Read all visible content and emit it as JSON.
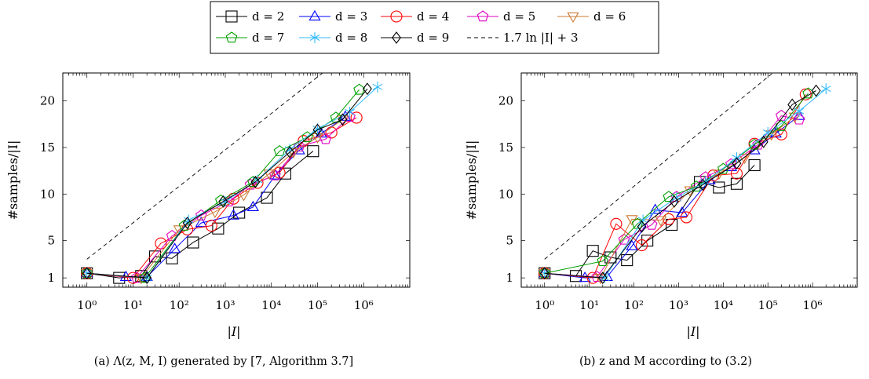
{
  "legend": {
    "entries": [
      {
        "key": "d2",
        "label": "d = 2",
        "marker": "square",
        "color": "#000000"
      },
      {
        "key": "d3",
        "label": "d = 3",
        "marker": "triangle",
        "color": "#0000ff"
      },
      {
        "key": "d4",
        "label": "d = 4",
        "marker": "circle",
        "color": "#ff0000"
      },
      {
        "key": "d5",
        "label": "d = 5",
        "marker": "pentagon",
        "color": "#e000c0"
      },
      {
        "key": "d6",
        "label": "d = 6",
        "marker": "triangle-down",
        "color": "#cc7a33"
      },
      {
        "key": "d7",
        "label": "d = 7",
        "marker": "pentagon",
        "color": "#00a000"
      },
      {
        "key": "d8",
        "label": "d = 8",
        "marker": "star",
        "color": "#33bbff"
      },
      {
        "key": "d9",
        "label": "d = 9",
        "marker": "diamond",
        "color": "#000000"
      },
      {
        "key": "ref",
        "label": "1.7 ln |I| + 3",
        "marker": "dashed-line",
        "color": "#000000"
      }
    ]
  },
  "chart_data": [
    {
      "type": "line",
      "caption": "(a) Λ(z, M, I) generated by [7, Algorithm 3.7]",
      "xlabel": "|I|",
      "ylabel": "#samples/|I|",
      "xscale": "log",
      "xlim": [
        0.3,
        10000000
      ],
      "ylim": [
        0,
        23
      ],
      "xticks": [
        1,
        10,
        100,
        1000,
        10000,
        100000,
        1000000
      ],
      "xtick_labels": [
        "10⁰",
        "10¹",
        "10²",
        "10³",
        "10⁴",
        "10⁵",
        "10⁶"
      ],
      "yticks": [
        1,
        5,
        10,
        15,
        20
      ],
      "reference": {
        "label": "1.7 ln |I| + 3",
        "a": 1.7,
        "b": 3
      },
      "series": [
        {
          "name": "d = 2",
          "x": [
            1,
            5,
            15,
            30,
            70,
            200,
            700,
            2000,
            8000,
            20000,
            80000
          ],
          "y": [
            1.5,
            1.0,
            1.2,
            3.3,
            3.1,
            4.8,
            6.3,
            8.0,
            9.6,
            12.2,
            14.6
          ]
        },
        {
          "name": "d = 3",
          "x": [
            1,
            7,
            20,
            80,
            300,
            1500,
            4000,
            12000,
            40000,
            120000,
            400000
          ],
          "y": [
            1.5,
            1.1,
            1.1,
            4.1,
            6.9,
            7.7,
            8.6,
            12.0,
            14.7,
            16.5,
            18.3
          ]
        },
        {
          "name": "d = 4",
          "x": [
            1,
            10,
            40,
            150,
            500,
            1500,
            5000,
            15000,
            50000,
            200000,
            700000
          ],
          "y": [
            1.5,
            1.0,
            4.7,
            6.2,
            6.6,
            9.5,
            11.2,
            12.3,
            15.7,
            16.6,
            18.2
          ]
        },
        {
          "name": "d = 5",
          "x": [
            1,
            12,
            70,
            300,
            1200,
            3500,
            12000,
            40000,
            150000,
            500000
          ],
          "y": [
            1.5,
            1.0,
            5.5,
            7.7,
            9.2,
            11.0,
            12.0,
            15.1,
            15.9,
            18.3
          ]
        },
        {
          "name": "d = 6",
          "x": [
            1,
            15,
            100,
            600,
            2500,
            9000,
            30000,
            100000,
            350000
          ],
          "y": [
            1.5,
            1.0,
            6.2,
            8.1,
            9.9,
            12.2,
            14.5,
            16.1,
            18.0
          ]
        },
        {
          "name": "d = 7",
          "x": [
            1,
            18,
            130,
            800,
            4000,
            15000,
            60000,
            250000,
            800000
          ],
          "y": [
            1.5,
            1.0,
            6.6,
            9.3,
            11.3,
            14.6,
            16.1,
            18.2,
            21.2
          ]
        },
        {
          "name": "d = 8",
          "x": [
            1,
            20,
            160,
            1000,
            5000,
            25000,
            100000,
            500000,
            2000000
          ],
          "y": [
            1.5,
            1.0,
            7.2,
            9.2,
            11.5,
            14.8,
            17.0,
            18.8,
            21.5
          ]
        },
        {
          "name": "d = 9",
          "x": [
            1,
            20,
            150,
            900,
            4500,
            25000,
            100000,
            350000,
            1200000
          ],
          "y": [
            1.5,
            1.0,
            6.9,
            9.2,
            11.3,
            14.5,
            16.9,
            18.0,
            21.3
          ]
        }
      ]
    },
    {
      "type": "line",
      "caption": "(b) z and M according to (3.2)",
      "xlabel": "|I|",
      "ylabel": "#samples/|I|",
      "xscale": "log",
      "xlim": [
        0.3,
        10000000
      ],
      "ylim": [
        0,
        23
      ],
      "xticks": [
        1,
        10,
        100,
        1000,
        10000,
        100000,
        1000000
      ],
      "xtick_labels": [
        "10⁰",
        "10¹",
        "10²",
        "10³",
        "10⁴",
        "10⁵",
        "10⁶"
      ],
      "yticks": [
        1,
        5,
        10,
        15,
        20
      ],
      "reference": {
        "label": "1.7 ln |I| + 3",
        "a": 1.7,
        "b": 3
      },
      "series": [
        {
          "name": "d = 2",
          "x": [
            1,
            5,
            12,
            30,
            70,
            200,
            700,
            3000,
            8000,
            20000,
            50000
          ],
          "y": [
            1.5,
            1.2,
            3.9,
            3.2,
            2.9,
            5.0,
            6.7,
            11.3,
            10.7,
            11.1,
            13.1
          ]
        },
        {
          "name": "d = 3",
          "x": [
            1,
            8,
            25,
            90,
            300,
            1200,
            5000,
            15000,
            50000,
            150000,
            500000
          ],
          "y": [
            1.5,
            1.0,
            1.1,
            4.4,
            8.3,
            8.0,
            11.5,
            12.9,
            14.7,
            16.5,
            18.4
          ]
        },
        {
          "name": "d = 4",
          "x": [
            1,
            12,
            40,
            150,
            600,
            1500,
            6000,
            20000,
            50000,
            200000,
            700000
          ],
          "y": [
            1.5,
            1.0,
            6.8,
            4.5,
            7.3,
            7.5,
            12.0,
            12.2,
            15.4,
            16.4,
            20.7
          ]
        },
        {
          "name": "d = 5",
          "x": [
            1,
            15,
            60,
            250,
            900,
            4000,
            15000,
            60000,
            200000,
            500000
          ],
          "y": [
            1.5,
            1.1,
            5.1,
            6.7,
            9.7,
            11.8,
            13.2,
            15.3,
            18.4,
            18.0
          ]
        },
        {
          "name": "d = 6",
          "x": [
            1,
            18,
            90,
            400,
            1800,
            8000,
            30000,
            120000,
            400000
          ],
          "y": [
            1.5,
            1.0,
            7.3,
            7.2,
            10.4,
            12.2,
            13.9,
            16.4,
            18.3
          ]
        },
        {
          "name": "d = 7",
          "x": [
            1,
            20,
            120,
            600,
            2500,
            10000,
            50000,
            200000,
            800000
          ],
          "y": [
            1.5,
            2.8,
            6.8,
            9.7,
            10.8,
            12.7,
            15.3,
            17.3,
            20.8
          ]
        },
        {
          "name": "d = 8",
          "x": [
            1,
            22,
            160,
            900,
            4000,
            20000,
            100000,
            500000,
            2000000
          ],
          "y": [
            1.5,
            1.0,
            7.2,
            9.6,
            11.3,
            13.9,
            16.6,
            18.9,
            21.3
          ]
        },
        {
          "name": "d = 9",
          "x": [
            1,
            20,
            150,
            800,
            3500,
            20000,
            80000,
            350000,
            1200000
          ],
          "y": [
            1.5,
            1.0,
            6.5,
            9.2,
            11.0,
            13.3,
            15.6,
            19.6,
            21.1
          ]
        }
      ]
    }
  ]
}
